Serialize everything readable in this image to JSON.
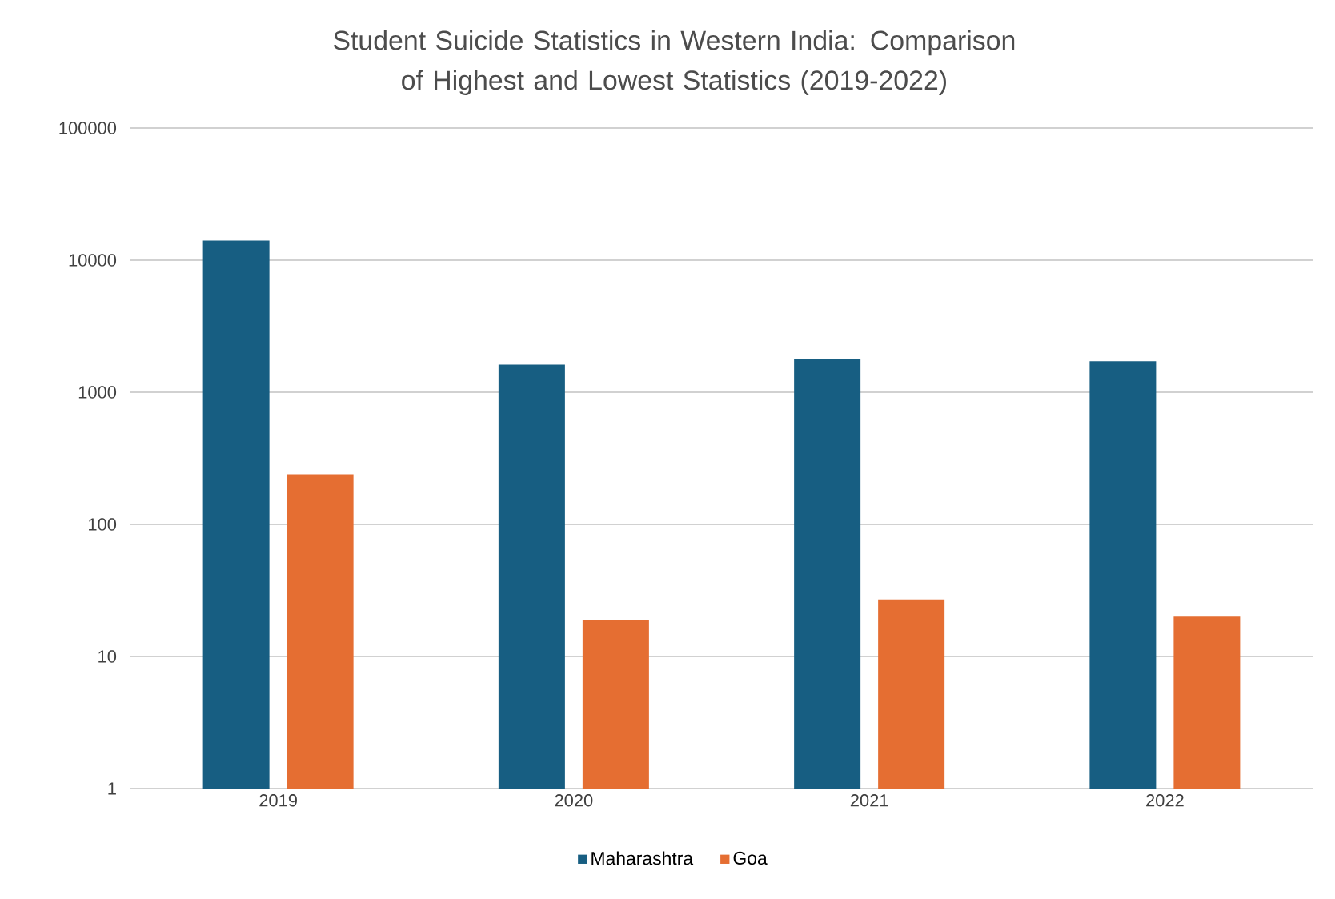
{
  "chart_data": {
    "type": "bar",
    "title": "Student Suicide Statistics in Western India: Comparison of Highest and Lowest Statistics (2019-2022)",
    "categories": [
      "2019",
      "2020",
      "2021",
      "2022"
    ],
    "series": [
      {
        "name": "Maharashtra",
        "color": "#175e82",
        "values": [
          14100,
          1620,
          1800,
          1720
        ]
      },
      {
        "name": "Goa",
        "color": "#e56e32",
        "values": [
          239,
          19,
          27,
          20
        ]
      }
    ],
    "log": "y",
    "ylim": [
      1,
      100000
    ],
    "yticks": [
      1,
      10,
      100,
      1000,
      10000,
      100000
    ],
    "grid": "y",
    "legend": "bottom"
  }
}
